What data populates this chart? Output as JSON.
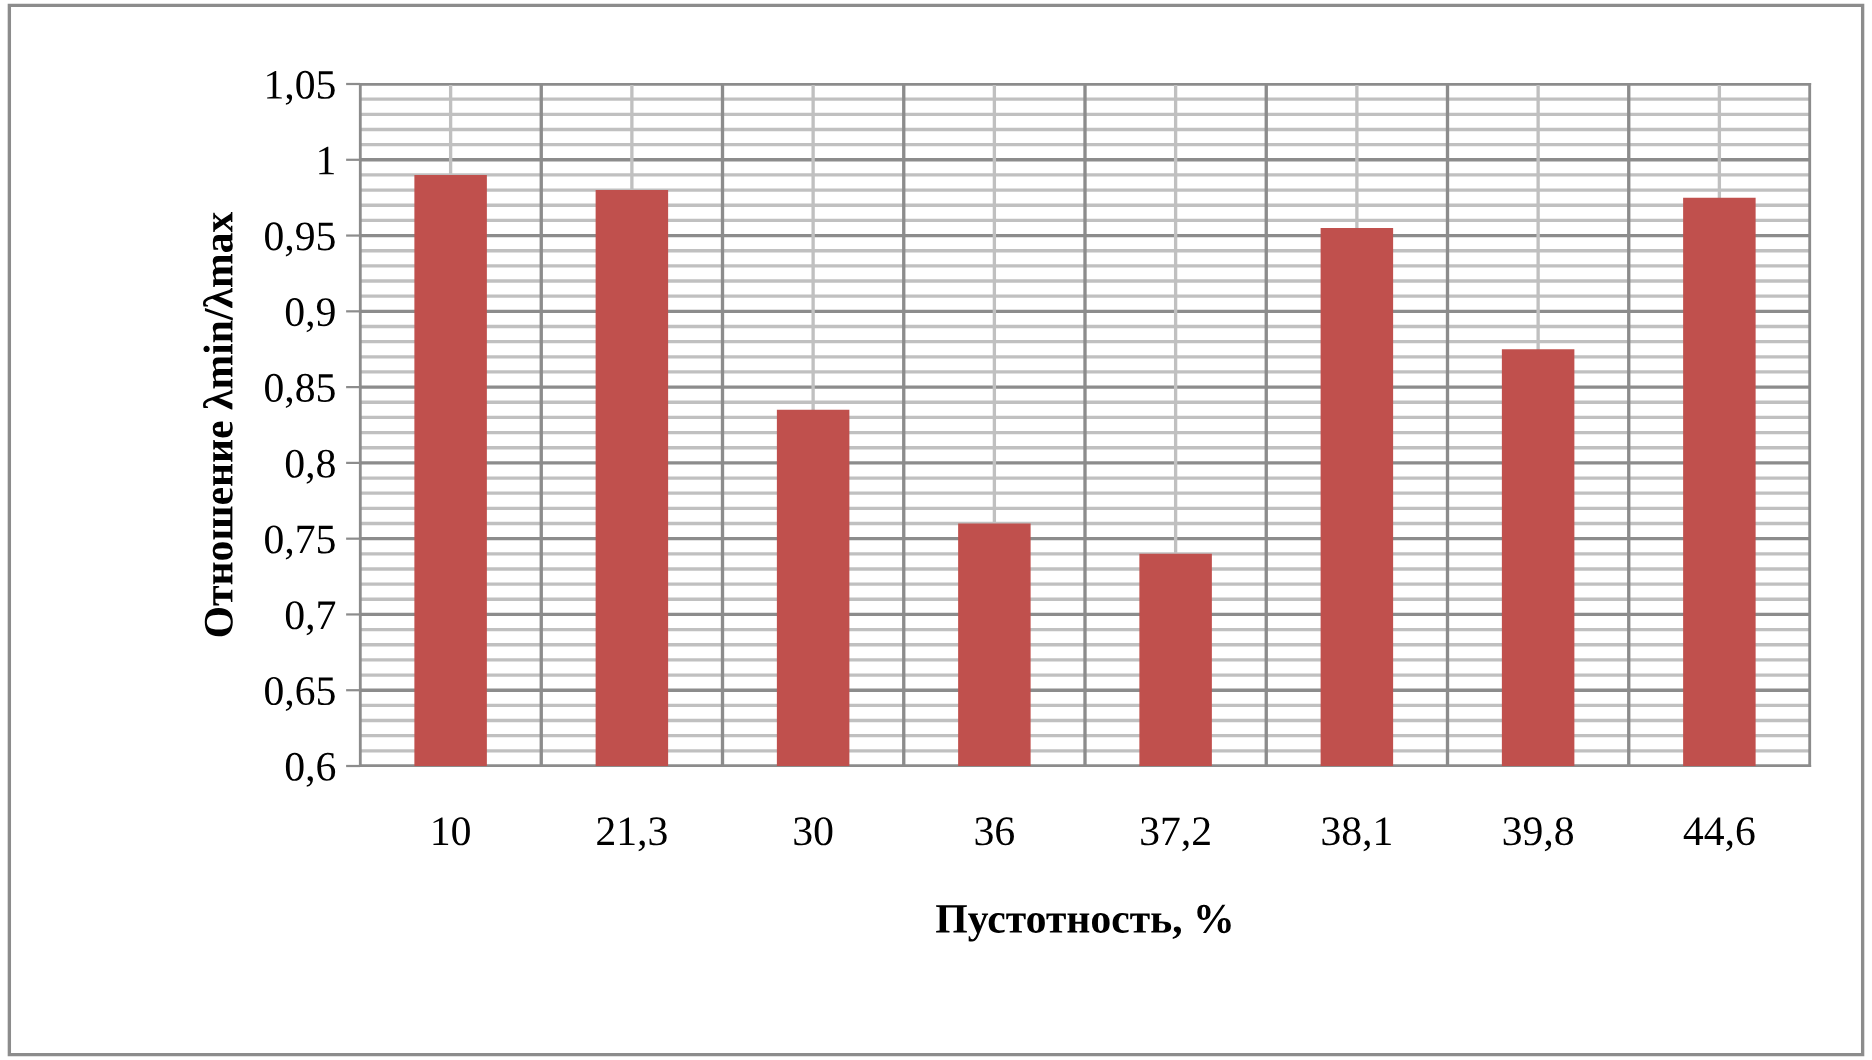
{
  "chart_data": {
    "type": "bar",
    "xlabel": "Пустотность, %",
    "ylabel": "Отношение λmin/λmax",
    "categories": [
      "10",
      "21,3",
      "30",
      "36",
      "37,2",
      "38,1",
      "39,8",
      "44,6"
    ],
    "values": [
      0.99,
      0.98,
      0.835,
      0.76,
      0.74,
      0.955,
      0.875,
      0.975
    ],
    "color": "#c0504d",
    "ylim": [
      0.6,
      1.05
    ],
    "yticks": [
      {
        "value": 0.6,
        "label": "0,6"
      },
      {
        "value": 0.65,
        "label": "0,65"
      },
      {
        "value": 0.7,
        "label": "0,7"
      },
      {
        "value": 0.75,
        "label": "0,75"
      },
      {
        "value": 0.8,
        "label": "0,8"
      },
      {
        "value": 0.85,
        "label": "0,85"
      },
      {
        "value": 0.9,
        "label": "0,9"
      },
      {
        "value": 0.95,
        "label": "0,95"
      },
      {
        "value": 1,
        "label": "1"
      },
      {
        "value": 1.05,
        "label": "1,05"
      }
    ],
    "grid": true,
    "legend": false
  }
}
